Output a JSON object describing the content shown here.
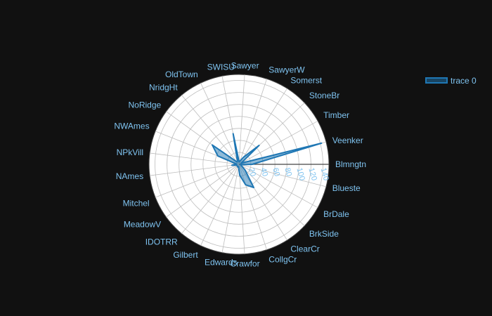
{
  "colors": {
    "background": "#111111",
    "polar_bg": "#ffffff",
    "grid": "#bdbdbd",
    "axis_line": "#444444",
    "label": "#7fc3f0",
    "trace_line": "#1f77b4",
    "trace_fill": "rgba(31,119,180,0.5)"
  },
  "chart_data": {
    "type": "radar",
    "title": "",
    "categories": [
      "Blmngtn",
      "Blueste",
      "BrDale",
      "BrkSide",
      "ClearCr",
      "CollgCr",
      "Crawfor",
      "Edwards",
      "Gilbert",
      "IDOTRR",
      "MeadowV",
      "Mitchel",
      "NAmes",
      "NPkVill",
      "NWAmes",
      "NoRidge",
      "NridgHt",
      "OldTown",
      "SWISU",
      "Sawyer",
      "SawyerW",
      "Somerst",
      "StoneBr",
      "Timber",
      "Veenker"
    ],
    "radial_ticks": [
      20,
      40,
      60,
      80,
      100,
      120,
      140
    ],
    "radial_tick_labels": [
      "20",
      "40",
      "60",
      "80",
      "100",
      "120",
      "140"
    ],
    "radial_range": [
      0,
      150
    ],
    "grid": true,
    "legend_position": "top-right",
    "series": [
      {
        "name": "trace 0",
        "values": [
          22,
          3,
          5,
          14,
          46,
          36,
          18,
          4,
          5,
          4,
          4,
          4,
          12,
          4,
          38,
          55,
          5,
          6,
          52,
          4,
          6,
          14,
          46,
          4,
          142
        ]
      }
    ]
  }
}
